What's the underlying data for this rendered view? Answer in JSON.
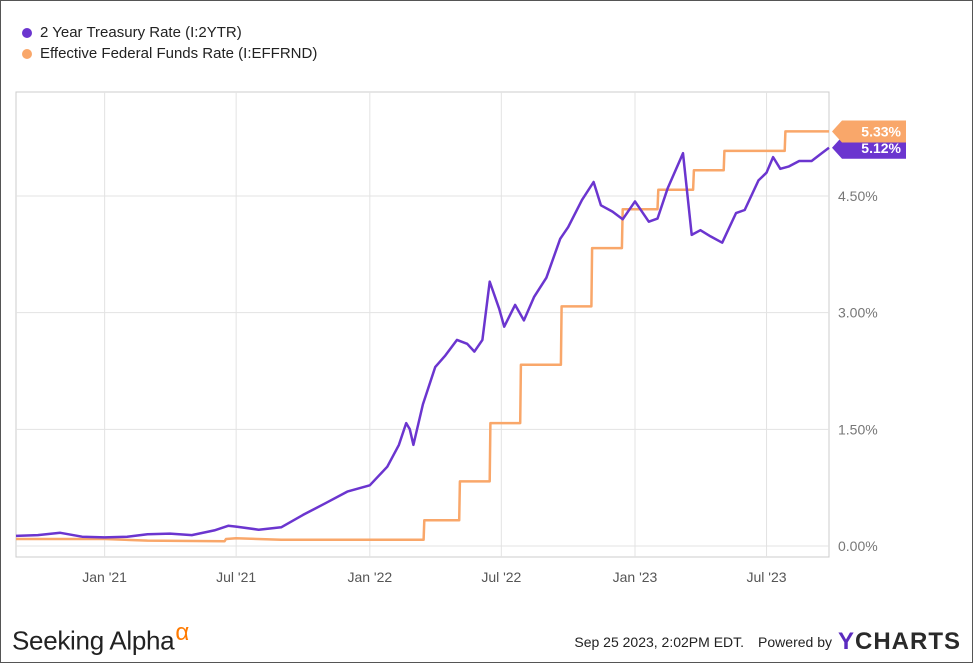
{
  "chart_data": {
    "type": "line",
    "title": "",
    "xlabel": "",
    "ylabel": "",
    "ylim": [
      0,
      5.6
    ],
    "xlim": [
      "2020-09-01",
      "2023-09-25"
    ],
    "y_ticks": [
      {
        "value": 0.0,
        "label": "0.00%"
      },
      {
        "value": 1.5,
        "label": "1.50%"
      },
      {
        "value": 3.0,
        "label": "3.00%"
      },
      {
        "value": 4.5,
        "label": "4.50%"
      }
    ],
    "x_ticks": [
      {
        "date": "2021-01-01",
        "label": "Jan '21"
      },
      {
        "date": "2021-07-01",
        "label": "Jul '21"
      },
      {
        "date": "2022-01-01",
        "label": "Jan '22"
      },
      {
        "date": "2022-07-01",
        "label": "Jul '22"
      },
      {
        "date": "2023-01-01",
        "label": "Jan '23"
      },
      {
        "date": "2023-07-01",
        "label": "Jul '23"
      }
    ],
    "grid": true,
    "legend_position": "top-left",
    "series": [
      {
        "name": "2 Year Treasury Rate (I:2YTR)",
        "color": "#6b35cf",
        "end_label": "5.12%",
        "points": [
          [
            "2020-09-01",
            0.13
          ],
          [
            "2020-10-01",
            0.14
          ],
          [
            "2020-11-01",
            0.17
          ],
          [
            "2020-12-01",
            0.12
          ],
          [
            "2021-01-01",
            0.11
          ],
          [
            "2021-02-01",
            0.12
          ],
          [
            "2021-03-01",
            0.15
          ],
          [
            "2021-04-01",
            0.16
          ],
          [
            "2021-05-01",
            0.14
          ],
          [
            "2021-06-01",
            0.2
          ],
          [
            "2021-06-20",
            0.26
          ],
          [
            "2021-07-01",
            0.25
          ],
          [
            "2021-08-01",
            0.21
          ],
          [
            "2021-09-01",
            0.24
          ],
          [
            "2021-10-01",
            0.4
          ],
          [
            "2021-11-01",
            0.55
          ],
          [
            "2021-12-01",
            0.7
          ],
          [
            "2022-01-01",
            0.78
          ],
          [
            "2022-01-25",
            1.02
          ],
          [
            "2022-02-10",
            1.3
          ],
          [
            "2022-02-20",
            1.58
          ],
          [
            "2022-02-25",
            1.5
          ],
          [
            "2022-03-02",
            1.3
          ],
          [
            "2022-03-15",
            1.82
          ],
          [
            "2022-04-01",
            2.3
          ],
          [
            "2022-04-15",
            2.45
          ],
          [
            "2022-05-01",
            2.65
          ],
          [
            "2022-05-15",
            2.6
          ],
          [
            "2022-05-25",
            2.5
          ],
          [
            "2022-06-05",
            2.65
          ],
          [
            "2022-06-15",
            3.4
          ],
          [
            "2022-06-28",
            3.05
          ],
          [
            "2022-07-05",
            2.82
          ],
          [
            "2022-07-20",
            3.1
          ],
          [
            "2022-08-01",
            2.9
          ],
          [
            "2022-08-15",
            3.2
          ],
          [
            "2022-09-01",
            3.45
          ],
          [
            "2022-09-20",
            3.95
          ],
          [
            "2022-10-01",
            4.1
          ],
          [
            "2022-10-20",
            4.45
          ],
          [
            "2022-11-05",
            4.68
          ],
          [
            "2022-11-15",
            4.38
          ],
          [
            "2022-12-01",
            4.3
          ],
          [
            "2022-12-15",
            4.2
          ],
          [
            "2023-01-01",
            4.43
          ],
          [
            "2023-01-20",
            4.17
          ],
          [
            "2023-02-01",
            4.21
          ],
          [
            "2023-02-15",
            4.6
          ],
          [
            "2023-03-08",
            5.05
          ],
          [
            "2023-03-20",
            4.0
          ],
          [
            "2023-04-01",
            4.06
          ],
          [
            "2023-04-15",
            3.98
          ],
          [
            "2023-05-01",
            3.9
          ],
          [
            "2023-05-20",
            4.28
          ],
          [
            "2023-06-01",
            4.32
          ],
          [
            "2023-06-20",
            4.7
          ],
          [
            "2023-07-01",
            4.8
          ],
          [
            "2023-07-10",
            5.0
          ],
          [
            "2023-07-20",
            4.85
          ],
          [
            "2023-08-01",
            4.88
          ],
          [
            "2023-08-15",
            4.95
          ],
          [
            "2023-09-01",
            4.95
          ],
          [
            "2023-09-15",
            5.05
          ],
          [
            "2023-09-25",
            5.12
          ]
        ]
      },
      {
        "name": "Effective Federal Funds Rate (I:EFFRND)",
        "color": "#f9a76a",
        "end_label": "5.33%",
        "points": [
          [
            "2020-09-01",
            0.09
          ],
          [
            "2021-01-01",
            0.09
          ],
          [
            "2021-03-01",
            0.07
          ],
          [
            "2021-06-15",
            0.06
          ],
          [
            "2021-06-17",
            0.09
          ],
          [
            "2021-07-01",
            0.1
          ],
          [
            "2021-09-01",
            0.08
          ],
          [
            "2022-03-16",
            0.08
          ],
          [
            "2022-03-17",
            0.33
          ],
          [
            "2022-05-04",
            0.33
          ],
          [
            "2022-05-05",
            0.83
          ],
          [
            "2022-06-15",
            0.83
          ],
          [
            "2022-06-16",
            1.58
          ],
          [
            "2022-07-27",
            1.58
          ],
          [
            "2022-07-28",
            2.33
          ],
          [
            "2022-09-21",
            2.33
          ],
          [
            "2022-09-22",
            3.08
          ],
          [
            "2022-11-02",
            3.08
          ],
          [
            "2022-11-03",
            3.83
          ],
          [
            "2022-12-14",
            3.83
          ],
          [
            "2022-12-15",
            4.33
          ],
          [
            "2023-02-01",
            4.33
          ],
          [
            "2023-02-02",
            4.58
          ],
          [
            "2023-03-22",
            4.58
          ],
          [
            "2023-03-23",
            4.83
          ],
          [
            "2023-05-03",
            4.83
          ],
          [
            "2023-05-04",
            5.08
          ],
          [
            "2023-07-26",
            5.08
          ],
          [
            "2023-07-27",
            5.33
          ],
          [
            "2023-09-25",
            5.33
          ]
        ]
      }
    ]
  },
  "footer": {
    "brand": "Seeking Alpha",
    "brand_symbol": "α",
    "timestamp": "Sep 25 2023, 2:02PM EDT.",
    "powered_by": "Powered by",
    "ycharts_y": "Y",
    "ycharts_rest": "CHARTS"
  }
}
